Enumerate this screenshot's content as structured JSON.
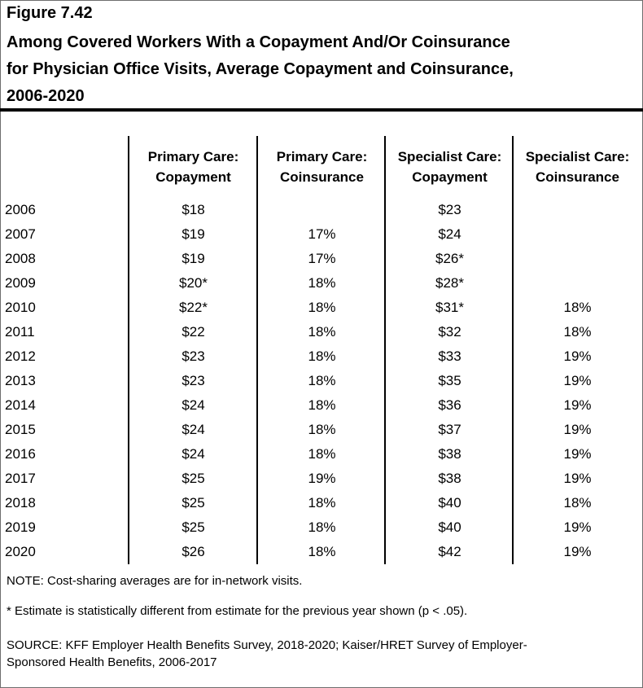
{
  "figure_number": "Figure 7.42",
  "title_lines": [
    "Among Covered Workers With a Copayment And/Or Coinsurance",
    "for Physician Office Visits, Average Copayment and Coinsurance,",
    "2006-2020"
  ],
  "chart_data": {
    "type": "table",
    "columns": [
      {
        "line1": "Primary Care:",
        "line2": "Copayment"
      },
      {
        "line1": "Primary Care:",
        "line2": "Coinsurance"
      },
      {
        "line1": "Specialist Care:",
        "line2": "Copayment"
      },
      {
        "line1": "Specialist Care:",
        "line2": "Coinsurance"
      }
    ],
    "rows": [
      {
        "year": "2006",
        "cells": [
          "$18",
          "",
          "$23",
          ""
        ]
      },
      {
        "year": "2007",
        "cells": [
          "$19",
          "17%",
          "$24",
          ""
        ]
      },
      {
        "year": "2008",
        "cells": [
          "$19",
          "17%",
          "$26*",
          ""
        ]
      },
      {
        "year": "2009",
        "cells": [
          "$20*",
          "18%",
          "$28*",
          ""
        ]
      },
      {
        "year": "2010",
        "cells": [
          "$22*",
          "18%",
          "$31*",
          "18%"
        ]
      },
      {
        "year": "2011",
        "cells": [
          "$22",
          "18%",
          "$32",
          "18%"
        ]
      },
      {
        "year": "2012",
        "cells": [
          "$23",
          "18%",
          "$33",
          "19%"
        ]
      },
      {
        "year": "2013",
        "cells": [
          "$23",
          "18%",
          "$35",
          "19%"
        ]
      },
      {
        "year": "2014",
        "cells": [
          "$24",
          "18%",
          "$36",
          "19%"
        ]
      },
      {
        "year": "2015",
        "cells": [
          "$24",
          "18%",
          "$37",
          "19%"
        ]
      },
      {
        "year": "2016",
        "cells": [
          "$24",
          "18%",
          "$38",
          "19%"
        ]
      },
      {
        "year": "2017",
        "cells": [
          "$25",
          "19%",
          "$38",
          "19%"
        ]
      },
      {
        "year": "2018",
        "cells": [
          "$25",
          "18%",
          "$40",
          "18%"
        ]
      },
      {
        "year": "2019",
        "cells": [
          "$25",
          "18%",
          "$40",
          "19%"
        ]
      },
      {
        "year": "2020",
        "cells": [
          "$26",
          "18%",
          "$42",
          "19%"
        ]
      }
    ]
  },
  "note": "NOTE: Cost-sharing averages are for in-network visits.",
  "footnote": "* Estimate is statistically different from estimate for the previous year shown (p < .05).",
  "source_lines": [
    "SOURCE: KFF Employer Health Benefits Survey, 2018-2020; Kaiser/HRET Survey of Employer-",
    "Sponsored Health Benefits, 2006-2017"
  ]
}
